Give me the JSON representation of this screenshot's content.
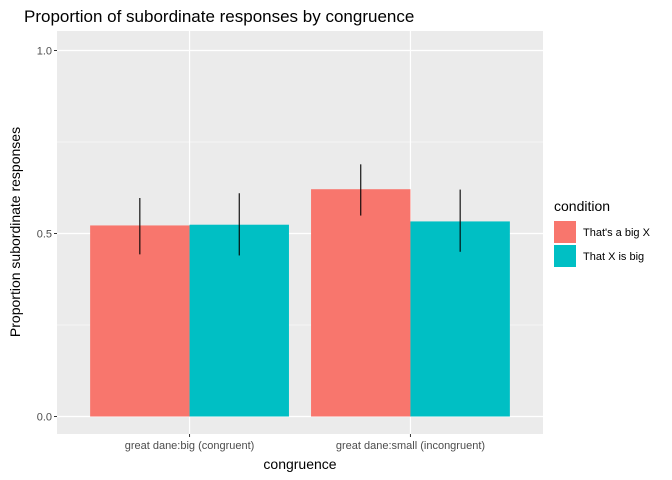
{
  "chart_data": {
    "type": "bar",
    "title": "Proportion of subordinate responses by congruence",
    "xlabel": "congruence",
    "ylabel": "Proportion subordinate responses",
    "ylim": [
      0,
      1
    ],
    "yticks": [
      "0.0",
      "0.5",
      "1.0"
    ],
    "grid": true,
    "legend": {
      "title": "condition",
      "placement": "right"
    },
    "categories": [
      "great dane:big (congruent)",
      "great dane:small (incongruent)"
    ],
    "series": [
      {
        "name": "That's a big X",
        "color": "#F8766D",
        "values": [
          0.522,
          0.621
        ],
        "error_low": [
          0.443,
          0.549
        ],
        "error_high": [
          0.597,
          0.689
        ]
      },
      {
        "name": "That X is big",
        "color": "#00BFC4",
        "values": [
          0.524,
          0.533
        ],
        "error_low": [
          0.44,
          0.45
        ],
        "error_high": [
          0.61,
          0.62
        ]
      }
    ]
  }
}
